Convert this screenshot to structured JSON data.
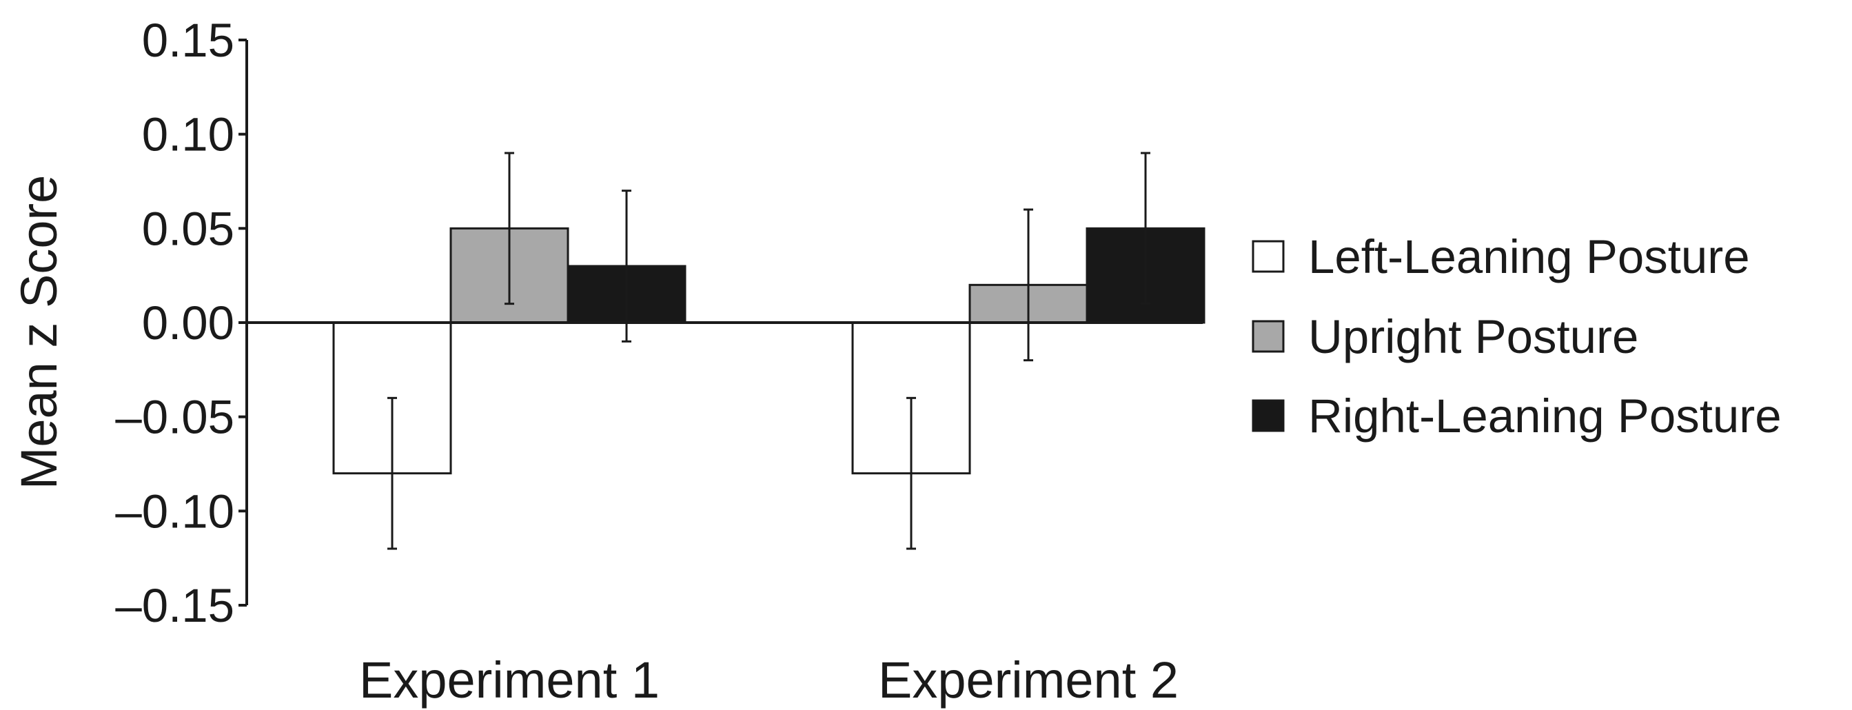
{
  "chart_data": {
    "type": "bar",
    "title": "",
    "xlabel": "",
    "ylabel": "Mean z Score",
    "ylim": [
      -0.15,
      0.15
    ],
    "yticks": [
      "0.15",
      "0.10",
      "0.05",
      "0.00",
      "–0.05",
      "–0.10",
      "–0.15"
    ],
    "ytick_values": [
      0.15,
      0.1,
      0.05,
      0.0,
      -0.05,
      -0.1,
      -0.15
    ],
    "categories": [
      "Experiment 1",
      "Experiment 2"
    ],
    "series": [
      {
        "name": "Left-Leaning Posture",
        "color": "#ffffff",
        "values": [
          -0.08,
          -0.08
        ],
        "error_low": [
          -0.12,
          -0.12
        ],
        "error_high": [
          -0.04,
          -0.04
        ]
      },
      {
        "name": "Upright Posture",
        "color": "#a8a8a8",
        "values": [
          0.05,
          0.02
        ],
        "error_low": [
          0.01,
          -0.02
        ],
        "error_high": [
          0.09,
          0.06
        ]
      },
      {
        "name": "Right-Leaning Posture",
        "color": "#181818",
        "values": [
          0.03,
          0.05
        ],
        "error_low": [
          -0.01,
          0.01
        ],
        "error_high": [
          0.07,
          0.09
        ]
      }
    ],
    "grid": false,
    "legend_position": "right"
  }
}
